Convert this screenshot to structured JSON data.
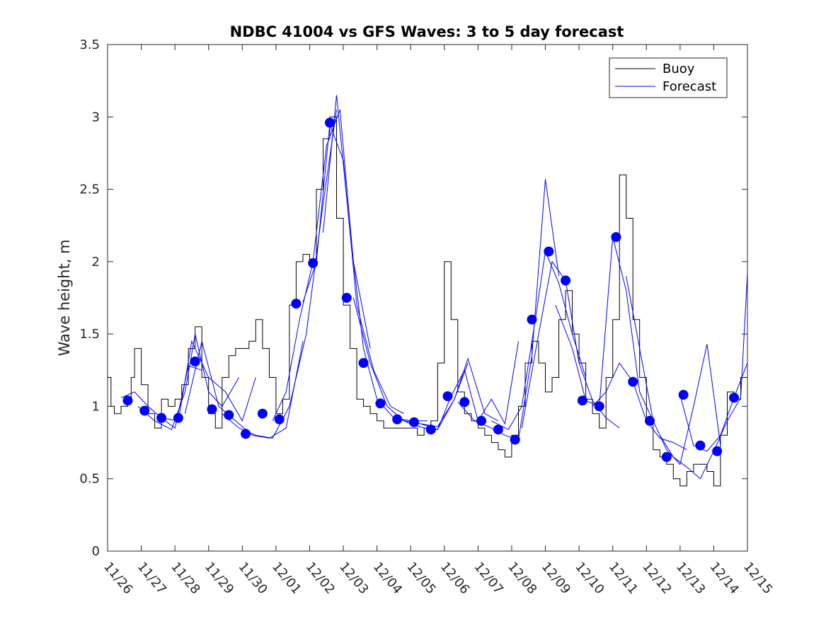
{
  "chart_data": {
    "type": "line",
    "title": "NDBC 41004 vs GFS Waves: 3 to 5 day forecast",
    "xlabel": "",
    "ylabel": "Wave height, m",
    "ylim": [
      0,
      3.5
    ],
    "xlim": [
      0,
      19
    ],
    "yticks": [
      0,
      0.5,
      1,
      1.5,
      2,
      2.5,
      3,
      3.5
    ],
    "ytick_labels": [
      "0",
      "0.5",
      "1",
      "1.5",
      "2",
      "2.5",
      "3",
      "3.5"
    ],
    "xtick_labels": [
      "11/26",
      "11/27",
      "11/28",
      "11/29",
      "11/30",
      "12/01",
      "12/02",
      "12/03",
      "12/04",
      "12/05",
      "12/06",
      "12/07",
      "12/08",
      "12/09",
      "12/10",
      "12/11",
      "12/12",
      "12/13",
      "12/14",
      "12/15"
    ],
    "legend": {
      "position": "top-right",
      "entries": [
        {
          "label": "Buoy",
          "color": "#000000"
        },
        {
          "label": "Forecast",
          "color": "#0000ff"
        }
      ]
    },
    "series": [
      {
        "name": "Buoy",
        "color": "#000000",
        "x": [
          0,
          0.1,
          0.2,
          0.4,
          0.6,
          0.7,
          0.8,
          1.0,
          1.2,
          1.4,
          1.6,
          1.8,
          2.0,
          2.2,
          2.4,
          2.6,
          2.8,
          3.0,
          3.2,
          3.4,
          3.6,
          3.8,
          4.0,
          4.2,
          4.4,
          4.6,
          4.8,
          5.0,
          5.2,
          5.4,
          5.6,
          5.8,
          6.0,
          6.2,
          6.4,
          6.6,
          6.8,
          7.0,
          7.2,
          7.4,
          7.6,
          7.8,
          8.0,
          8.2,
          8.4,
          8.6,
          8.8,
          9.0,
          9.2,
          9.4,
          9.6,
          9.8,
          10.0,
          10.2,
          10.4,
          10.6,
          10.8,
          11.0,
          11.2,
          11.4,
          11.6,
          11.8,
          12.0,
          12.2,
          12.4,
          12.6,
          12.8,
          13.0,
          13.2,
          13.4,
          13.6,
          13.8,
          14.0,
          14.2,
          14.4,
          14.6,
          14.8,
          15.0,
          15.2,
          15.4,
          15.6,
          15.8,
          16.0,
          16.2,
          16.4,
          16.6,
          16.8,
          17.0,
          17.2,
          17.4,
          17.6,
          17.8,
          18.0,
          18.2,
          18.4,
          18.6,
          18.8,
          19.0
        ],
        "values": [
          1.2,
          1.0,
          0.95,
          1.0,
          1.05,
          1.2,
          1.4,
          1.15,
          0.95,
          0.85,
          1.05,
          1.0,
          1.05,
          1.15,
          1.4,
          1.55,
          1.2,
          0.95,
          0.85,
          1.2,
          1.35,
          1.4,
          1.4,
          1.45,
          1.6,
          1.4,
          1.2,
          0.95,
          1.05,
          1.7,
          2.0,
          2.05,
          2.0,
          2.5,
          2.85,
          3.0,
          2.3,
          1.7,
          1.4,
          1.05,
          1.0,
          0.95,
          0.9,
          0.85,
          0.85,
          0.85,
          0.85,
          0.85,
          0.8,
          0.85,
          0.9,
          1.3,
          2.0,
          1.6,
          1.1,
          0.95,
          0.9,
          0.85,
          0.8,
          0.75,
          0.7,
          0.65,
          0.8,
          1.0,
          1.3,
          1.45,
          1.3,
          1.1,
          1.2,
          1.6,
          1.8,
          1.5,
          1.3,
          1.05,
          0.95,
          0.85,
          1.2,
          1.6,
          2.6,
          2.3,
          1.6,
          1.2,
          0.9,
          0.7,
          0.65,
          0.6,
          0.5,
          0.45,
          0.55,
          0.6,
          0.6,
          0.55,
          0.45,
          0.8,
          1.1,
          1.05,
          1.2,
          1.6
        ]
      },
      {
        "name": "Forecast",
        "color": "#0000ff",
        "runs": [
          {
            "x": [
              0.4,
              0.8,
              1.2,
              1.6,
              2.0,
              2.4,
              2.8
            ],
            "values": [
              1.06,
              1.1,
              1.0,
              0.92,
              0.85,
              1.28,
              1.25
            ]
          },
          {
            "x": [
              0.9,
              1.4,
              1.9,
              2.3,
              2.6,
              3.0,
              3.4,
              3.9
            ],
            "values": [
              1.0,
              0.9,
              0.84,
              1.1,
              1.5,
              1.1,
              1.0,
              1.2
            ]
          },
          {
            "x": [
              1.6,
              2.1,
              2.5,
              3.0,
              3.5,
              4.0,
              4.4
            ],
            "values": [
              0.92,
              0.9,
              1.45,
              1.2,
              1.1,
              0.9,
              1.2
            ]
          },
          {
            "x": [
              2.3,
              2.8,
              3.3,
              3.8,
              4.3,
              4.8,
              5.3,
              5.8
            ],
            "values": [
              0.95,
              1.45,
              1.0,
              0.9,
              0.8,
              0.78,
              0.85,
              1.45
            ]
          },
          {
            "x": [
              3.4,
              3.9,
              4.4,
              4.9,
              5.4,
              5.9,
              6.4,
              6.8
            ],
            "values": [
              0.95,
              0.85,
              0.8,
              0.78,
              1.0,
              1.5,
              2.4,
              3.05
            ]
          },
          {
            "x": [
              4.9,
              5.3,
              5.7,
              6.1,
              6.5,
              6.9,
              7.3,
              7.8
            ],
            "values": [
              0.9,
              1.1,
              1.6,
              2.0,
              2.8,
              3.05,
              2.0,
              1.4
            ]
          },
          {
            "x": [
              5.8,
              6.2,
              6.6,
              7.0,
              7.4,
              7.9,
              8.4,
              8.8
            ],
            "values": [
              1.72,
              2.0,
              2.95,
              2.7,
              1.7,
              1.25,
              1.0,
              0.95
            ]
          },
          {
            "x": [
              6.4,
              6.8,
              7.2,
              7.6,
              8.0,
              8.5,
              9.0,
              9.5
            ],
            "values": [
              2.2,
              3.15,
              2.2,
              1.4,
              1.05,
              0.92,
              0.9,
              0.9
            ]
          },
          {
            "x": [
              7.3,
              7.8,
              8.3,
              8.8,
              9.3,
              9.8,
              10.3,
              10.7
            ],
            "values": [
              1.75,
              1.3,
              1.0,
              0.9,
              0.88,
              0.86,
              1.05,
              1.3
            ]
          },
          {
            "x": [
              8.6,
              9.0,
              9.4,
              9.8,
              10.3,
              10.7,
              11.2,
              11.6
            ],
            "values": [
              0.92,
              0.88,
              0.85,
              0.84,
              1.05,
              1.33,
              0.95,
              0.9
            ]
          },
          {
            "x": [
              9.3,
              9.8,
              10.2,
              10.6,
              11.0,
              11.4,
              11.8,
              12.2
            ],
            "values": [
              0.88,
              0.84,
              1.07,
              1.25,
              0.9,
              1.05,
              0.88,
              1.45
            ]
          },
          {
            "x": [
              10.4,
              10.9,
              11.4,
              11.8,
              12.2,
              12.6,
              13.0,
              13.4
            ],
            "values": [
              1.03,
              0.9,
              0.85,
              0.8,
              0.77,
              1.35,
              2.57,
              1.9
            ]
          },
          {
            "x": [
              11.4,
              11.9,
              12.3,
              12.7,
              13.0,
              13.4,
              13.8,
              14.2
            ],
            "values": [
              0.9,
              0.84,
              1.0,
              1.6,
              2.07,
              1.85,
              1.5,
              1.2
            ]
          },
          {
            "x": [
              12.3,
              12.8,
              13.2,
              13.6,
              14.0,
              14.4,
              14.8,
              15.2
            ],
            "values": [
              0.85,
              1.5,
              2.0,
              1.87,
              1.3,
              1.04,
              0.92,
              0.85
            ]
          },
          {
            "x": [
              13.3,
              13.8,
              14.2,
              14.6,
              15.0,
              15.4,
              15.8,
              16.2
            ],
            "values": [
              1.7,
              1.4,
              1.04,
              1.0,
              2.17,
              1.8,
              1.1,
              0.9
            ]
          },
          {
            "x": [
              14.4,
              14.8,
              15.2,
              15.6,
              16.0,
              16.4,
              16.8,
              17.2
            ],
            "values": [
              1.0,
              1.1,
              1.3,
              1.17,
              0.9,
              0.78,
              0.75,
              0.7
            ]
          },
          {
            "x": [
              15.4,
              15.8,
              16.2,
              16.6,
              17.0,
              17.4,
              17.8,
              18.2
            ],
            "values": [
              1.9,
              1.4,
              0.9,
              0.7,
              0.6,
              1.0,
              1.43,
              0.73
            ]
          },
          {
            "x": [
              16.4,
              16.8,
              17.2,
              17.6,
              18.0,
              18.4,
              18.8,
              19.0
            ],
            "values": [
              0.8,
              0.65,
              0.58,
              0.5,
              0.69,
              0.9,
              1.06,
              1.92
            ]
          },
          {
            "x": [
              17.0,
              17.4,
              17.8,
              18.2,
              18.6,
              19.0
            ],
            "values": [
              1.08,
              0.73,
              0.69,
              0.8,
              1.06,
              1.3
            ]
          }
        ]
      }
    ],
    "markers": {
      "name": "Forecast points",
      "color": "#0000ff",
      "x": [
        0.6,
        1.1,
        1.6,
        2.1,
        2.6,
        3.1,
        3.6,
        4.1,
        4.6,
        5.1,
        5.6,
        6.1,
        6.6,
        7.1,
        7.6,
        8.1,
        8.6,
        9.1,
        9.6,
        10.1,
        10.6,
        11.1,
        11.6,
        12.1,
        12.6,
        13.1,
        13.6,
        14.1,
        14.6,
        15.1,
        15.6,
        16.1,
        16.6,
        17.1,
        17.6,
        18.1,
        18.6
      ],
      "values": [
        1.04,
        0.97,
        0.92,
        0.92,
        1.31,
        0.98,
        0.94,
        0.81,
        0.95,
        0.91,
        1.71,
        1.99,
        2.96,
        1.75,
        1.3,
        1.02,
        0.91,
        0.89,
        0.84,
        1.07,
        1.03,
        0.9,
        0.84,
        0.77,
        1.6,
        2.07,
        1.87,
        1.04,
        1.0,
        2.17,
        1.17,
        0.9,
        0.65,
        1.08,
        0.73,
        0.69,
        1.06
      ]
    }
  }
}
